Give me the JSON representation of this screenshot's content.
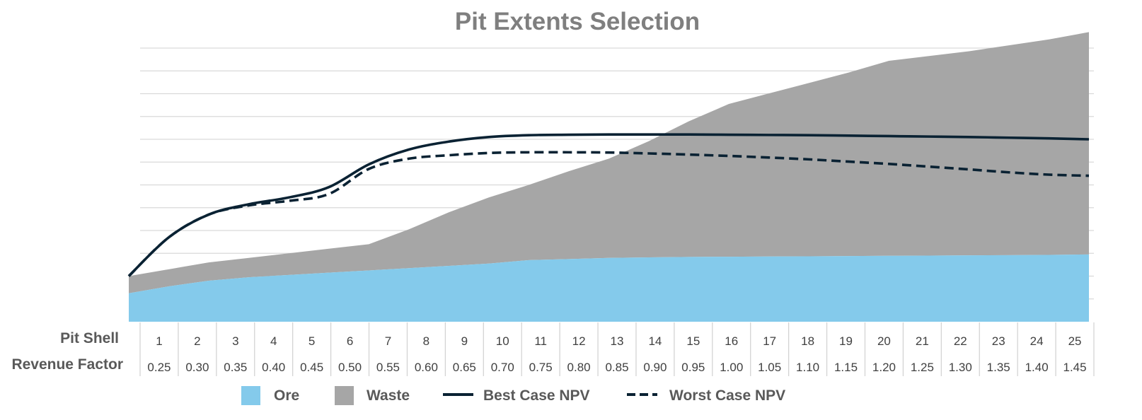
{
  "chart_data": {
    "type": "area",
    "title": "Pit Extents Selection",
    "row_labels": {
      "pit_shell": "Pit Shell",
      "revenue_factor": "Revenue Factor"
    },
    "x": [
      "1",
      "2",
      "3",
      "4",
      "5",
      "6",
      "7",
      "8",
      "9",
      "10",
      "11",
      "12",
      "13",
      "14",
      "15",
      "16",
      "17",
      "18",
      "19",
      "20",
      "21",
      "22",
      "23",
      "24",
      "25"
    ],
    "x2": [
      "0.25",
      "0.30",
      "0.35",
      "0.40",
      "0.45",
      "0.50",
      "0.55",
      "0.60",
      "0.65",
      "0.70",
      "0.75",
      "0.80",
      "0.85",
      "0.90",
      "0.95",
      "1.00",
      "1.05",
      "1.10",
      "1.15",
      "1.20",
      "1.25",
      "1.30",
      "1.35",
      "1.40",
      "1.45"
    ],
    "ylim": [
      0,
      12
    ],
    "grid": true,
    "legend": "bottom",
    "series": [
      {
        "name": "Ore",
        "kind": "area",
        "color": "#84caeb",
        "values": [
          1.25,
          1.55,
          1.8,
          1.95,
          2.05,
          2.15,
          2.25,
          2.35,
          2.45,
          2.55,
          2.7,
          2.75,
          2.8,
          2.82,
          2.84,
          2.85,
          2.86,
          2.87,
          2.88,
          2.89,
          2.9,
          2.91,
          2.92,
          2.93,
          2.95
        ]
      },
      {
        "name": "Waste",
        "kind": "stacked-area",
        "color": "#a6a6a6",
        "values": [
          0.75,
          0.75,
          0.8,
          0.85,
          0.95,
          1.05,
          1.15,
          1.7,
          2.35,
          2.9,
          3.3,
          3.85,
          4.35,
          5.1,
          5.95,
          6.7,
          7.15,
          7.6,
          8.05,
          8.55,
          8.75,
          8.95,
          9.2,
          9.45,
          9.75
        ]
      },
      {
        "name": "Best Case NPV",
        "kind": "line",
        "dash": "solid",
        "color": "#0a2233",
        "values": [
          2.0,
          3.7,
          4.7,
          5.15,
          5.45,
          5.9,
          6.9,
          7.55,
          7.9,
          8.1,
          8.18,
          8.2,
          8.21,
          8.21,
          8.21,
          8.2,
          8.19,
          8.18,
          8.16,
          8.14,
          8.12,
          8.1,
          8.07,
          8.04,
          8.0
        ]
      },
      {
        "name": "Worst Case NPV",
        "kind": "line",
        "dash": "dashed",
        "color": "#0a2233",
        "values": [
          2.0,
          3.7,
          4.7,
          5.1,
          5.3,
          5.6,
          6.7,
          7.15,
          7.3,
          7.4,
          7.43,
          7.43,
          7.42,
          7.38,
          7.33,
          7.27,
          7.2,
          7.12,
          7.02,
          6.92,
          6.8,
          6.68,
          6.55,
          6.45,
          6.4
        ]
      }
    ]
  }
}
